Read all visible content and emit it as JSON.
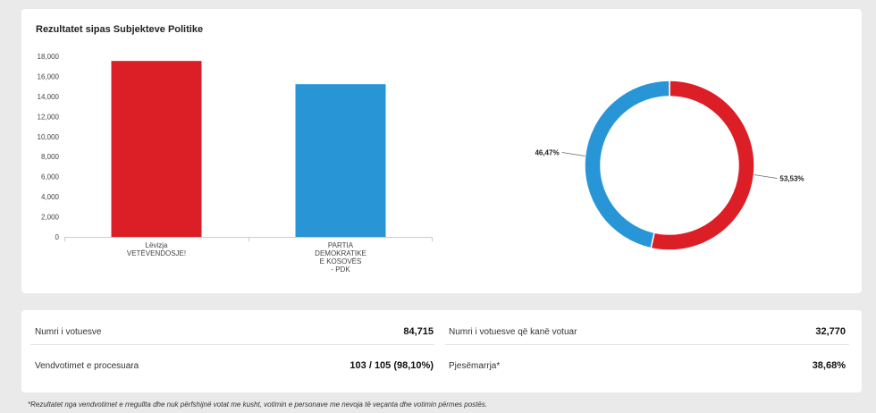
{
  "chart_card": {
    "title": "Rezultatet sipas Subjekteve Politike"
  },
  "chart_data": [
    {
      "type": "bar",
      "categories": [
        [
          "Lëvizja",
          "VETËVENDOSJE!"
        ],
        [
          "PARTIA",
          "DEMOKRATIKE",
          "E KOSOVËS",
          "- PDK"
        ]
      ],
      "values": [
        17540,
        15220
      ],
      "colors": [
        "#dc1f27",
        "#2896d6"
      ],
      "ylim": [
        0,
        18000
      ],
      "yticks": [
        0,
        2000,
        4000,
        6000,
        8000,
        10000,
        12000,
        14000,
        16000,
        18000
      ],
      "ytick_labels": [
        "0",
        "2,000",
        "4,000",
        "6,000",
        "8,000",
        "10,000",
        "12,000",
        "14,000",
        "16,000",
        "18,000"
      ]
    },
    {
      "type": "pie",
      "donut": true,
      "slices": [
        {
          "value": 53.53,
          "label": "53,53%",
          "color": "#dc1f27"
        },
        {
          "value": 46.47,
          "label": "46,47%",
          "color": "#2896d6"
        }
      ]
    }
  ],
  "stats": {
    "voters_label": "Numri i votuesve",
    "voters_value": "84,715",
    "voted_label": "Numri i votuesve që kanë votuar",
    "voted_value": "32,770",
    "processed_label": "Vendvotimet e procesuara",
    "processed_value": "103 / 105 (98,10%)",
    "turnout_label": "Pjesëmarrja*",
    "turnout_value": "38,68%"
  },
  "footnote": "*Rezultatet nga vendvotimet e rregullta dhe nuk përfshijnë votat me kusht, votimin e personave me nevoja të veçanta dhe votimin përmes postës."
}
